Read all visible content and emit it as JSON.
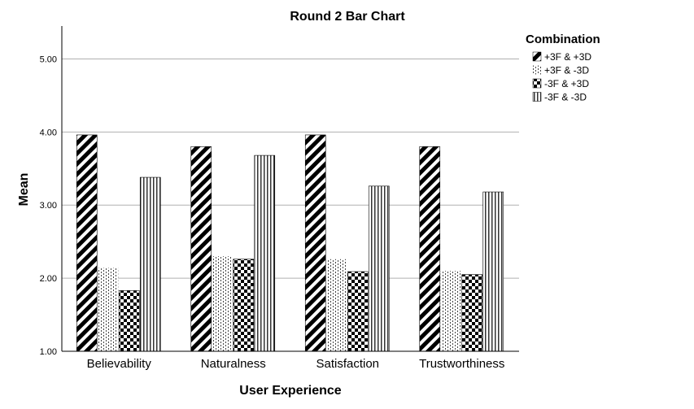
{
  "chart_data": {
    "type": "bar",
    "title": "Round 2 Bar Chart",
    "xlabel": "User Experience",
    "ylabel": "Mean",
    "categories": [
      "Believability",
      "Naturalness",
      "Satisfaction",
      "Trustworthiness"
    ],
    "series": [
      {
        "name": "+3F & +3D",
        "pattern": "diagonal",
        "values": [
          3.96,
          3.8,
          3.96,
          3.8
        ]
      },
      {
        "name": "+3F & -3D",
        "pattern": "dotted",
        "values": [
          2.14,
          2.3,
          2.26,
          2.1
        ]
      },
      {
        "name": "-3F & +3D",
        "pattern": "checker",
        "values": [
          1.83,
          2.26,
          2.09,
          2.05
        ]
      },
      {
        "name": "-3F & -3D",
        "pattern": "vertical",
        "values": [
          3.38,
          3.68,
          3.26,
          3.18
        ]
      }
    ],
    "ylim": [
      1.0,
      5.45
    ],
    "yticks": [
      "1.00",
      "2.00",
      "3.00",
      "4.00",
      "5.00"
    ],
    "ytick_values": [
      1,
      2,
      3,
      4,
      5
    ],
    "grid": true,
    "legend": {
      "title": "Combination",
      "placement": "top-right"
    }
  }
}
